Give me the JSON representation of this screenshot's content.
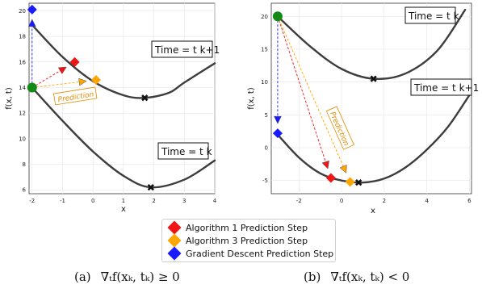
{
  "colors": {
    "curve": "#3d3d3d",
    "green": "#138a13",
    "red": "#f01414",
    "orange": "#ffa500",
    "blue": "#1a1aff",
    "prediction_text": "#e08a00"
  },
  "legend": {
    "items": [
      {
        "label": "Algorithm 1 Prediction Step",
        "color": "#f01414"
      },
      {
        "label": "Algorithm 3 Prediction Step",
        "color": "#ffa500"
      },
      {
        "label": "Gradient Descent Prediction Step",
        "color": "#1a1aff"
      }
    ]
  },
  "captions": {
    "a_label": "(a)",
    "a_math": "∇ₜf(xₖ, tₖ) ≥ 0",
    "b_label": "(b)",
    "b_math": "∇ₜf(xₖ, tₖ) < 0"
  },
  "chart_data": [
    {
      "type": "line",
      "title": "",
      "xlabel": "x",
      "ylabel": "f(x, t)",
      "xlim": [
        -2.1,
        4.0
      ],
      "ylim": [
        5.7,
        20.6
      ],
      "xticks": [
        "-2",
        "-1",
        "0",
        "1",
        "2",
        "3",
        "4"
      ],
      "yticks": [
        "6",
        "8",
        "10",
        "12",
        "14",
        "16",
        "18",
        "20"
      ],
      "grid": true,
      "series": [
        {
          "label": "Time = t k+1",
          "x": [
            -2,
            -1,
            0,
            1,
            1.7,
            2.5,
            3,
            4
          ],
          "y": [
            18.9,
            16.4,
            14.5,
            13.4,
            13.2,
            13.6,
            14.4,
            15.9
          ]
        },
        {
          "label": "Time = t k",
          "x": [
            -2,
            -1,
            0,
            1,
            1.9,
            3,
            4
          ],
          "y": [
            14.0,
            11.4,
            9.0,
            7.1,
            6.2,
            6.8,
            8.3
          ]
        }
      ],
      "annotations": {
        "time_k_plus_1": "Time = t k+1",
        "time_k": "Time = t k",
        "prediction": "Prediction"
      },
      "points": [
        {
          "name": "current",
          "color": "green",
          "shape": "circle",
          "x": -2.0,
          "y": 14.0
        },
        {
          "name": "gradient_descent",
          "color": "blue",
          "shape": "diamond",
          "x": -2.0,
          "y": 20.1
        },
        {
          "name": "algorithm_1",
          "color": "red",
          "shape": "diamond",
          "x": -0.6,
          "y": 16.0
        },
        {
          "name": "algorithm_3",
          "color": "orange",
          "shape": "diamond",
          "x": 0.1,
          "y": 14.6
        },
        {
          "name": "min_t_k_plus_1",
          "color": "black",
          "shape": "x",
          "x": 1.7,
          "y": 13.2
        },
        {
          "name": "min_t_k",
          "color": "black",
          "shape": "x",
          "x": 1.9,
          "y": 6.2
        }
      ]
    },
    {
      "type": "line",
      "title": "",
      "xlabel": "x",
      "ylabel": "f(x, t)",
      "xlim": [
        -3.3,
        6.1
      ],
      "ylim": [
        -7.0,
        22.0
      ],
      "xticks": [
        "-2",
        "0",
        "2",
        "4",
        "6"
      ],
      "yticks": [
        "-5",
        "0",
        "5",
        "10",
        "15",
        "20"
      ],
      "grid": true,
      "series": [
        {
          "label": "Time = t k",
          "x": [
            -3,
            -1.5,
            0,
            1.5,
            3,
            4.5,
            5.8
          ],
          "y": [
            20.0,
            15.5,
            12.0,
            10.5,
            11.3,
            14.8,
            21.0
          ]
        },
        {
          "label": "Time = t k+1",
          "x": [
            -3,
            -2,
            -1,
            0,
            1,
            2,
            3,
            4,
            5,
            6
          ],
          "y": [
            2.0,
            -1.5,
            -3.9,
            -5.0,
            -5.3,
            -4.7,
            -3.0,
            -0.3,
            3.2,
            8.0
          ]
        }
      ],
      "annotations": {
        "time_k": "Time = t k",
        "time_k_plus_1": "Time = t k+1",
        "prediction": "Prediction"
      },
      "points": [
        {
          "name": "current",
          "color": "green",
          "shape": "circle",
          "x": -3.0,
          "y": 20.0
        },
        {
          "name": "gradient_descent",
          "color": "blue",
          "shape": "diamond",
          "x": -3.0,
          "y": 2.2
        },
        {
          "name": "algorithm_1",
          "color": "red",
          "shape": "diamond",
          "x": -0.5,
          "y": -4.6
        },
        {
          "name": "algorithm_3",
          "color": "orange",
          "shape": "diamond",
          "x": 0.4,
          "y": -5.2
        },
        {
          "name": "min_t_k",
          "color": "black",
          "shape": "x",
          "x": 1.5,
          "y": 10.5
        },
        {
          "name": "min_t_k_plus_1",
          "color": "black",
          "shape": "x",
          "x": 0.8,
          "y": -5.3
        }
      ]
    }
  ]
}
